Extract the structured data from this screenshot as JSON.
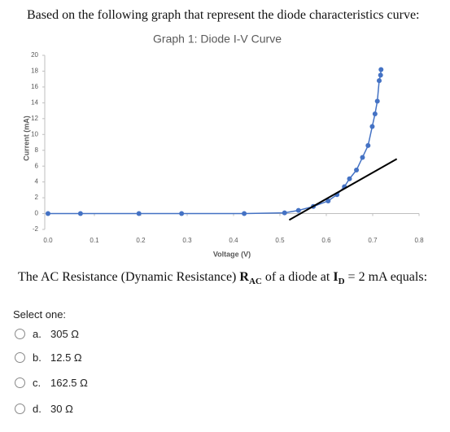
{
  "intro": "Based on the following graph that represent the diode characteristics curve:",
  "chart_data": {
    "type": "scatter-line",
    "title": "Graph 1: Diode I-V Curve",
    "x_label": "Voltage (V)",
    "y_label": "Current (mA)",
    "xlim": [
      -0.007,
      0.8
    ],
    "ylim": [
      -2,
      20
    ],
    "xticks": [
      {
        "value": 0,
        "label": "0.0"
      },
      0.1,
      0.2,
      0.3,
      0.4,
      0.5,
      0.6,
      0.7,
      0.8
    ],
    "yticks": [
      -2,
      0,
      2,
      4,
      6,
      8,
      10,
      12,
      14,
      16,
      18,
      20
    ],
    "series": [
      {
        "color": "#4472c4",
        "x": [
          0,
          0.07,
          0.196,
          0.288,
          0.423,
          0.51,
          0.54,
          0.572,
          0.604,
          0.623,
          0.639,
          0.65,
          0.665,
          0.678,
          0.69,
          0.699,
          0.705,
          0.71,
          0.714,
          0.717,
          0.718
        ],
        "values": [
          0,
          0,
          0,
          0,
          0,
          0.1,
          0.4,
          0.9,
          1.6,
          2.4,
          3.4,
          4.4,
          5.5,
          7.1,
          8.6,
          11,
          12.6,
          14.2,
          16.8,
          17.5,
          18.2
        ]
      }
    ],
    "tangent": {
      "color": "#000000",
      "x": [
        0.52,
        0.752
      ],
      "values": [
        -0.8,
        6.9
      ]
    }
  },
  "question": [
    "The AC Resistance (Dynamic Resistance) ",
    "R",
    "AC",
    " of a diode at ",
    "I",
    "D",
    " = 2 mA equals:"
  ],
  "prompt": "Select one:",
  "options": [
    {
      "letter": "a.",
      "text": "305 Ω"
    },
    {
      "letter": "b.",
      "text": "12.5 Ω"
    },
    {
      "letter": "c.",
      "text": "162.5 Ω"
    },
    {
      "letter": "d.",
      "text": "30 Ω"
    }
  ]
}
